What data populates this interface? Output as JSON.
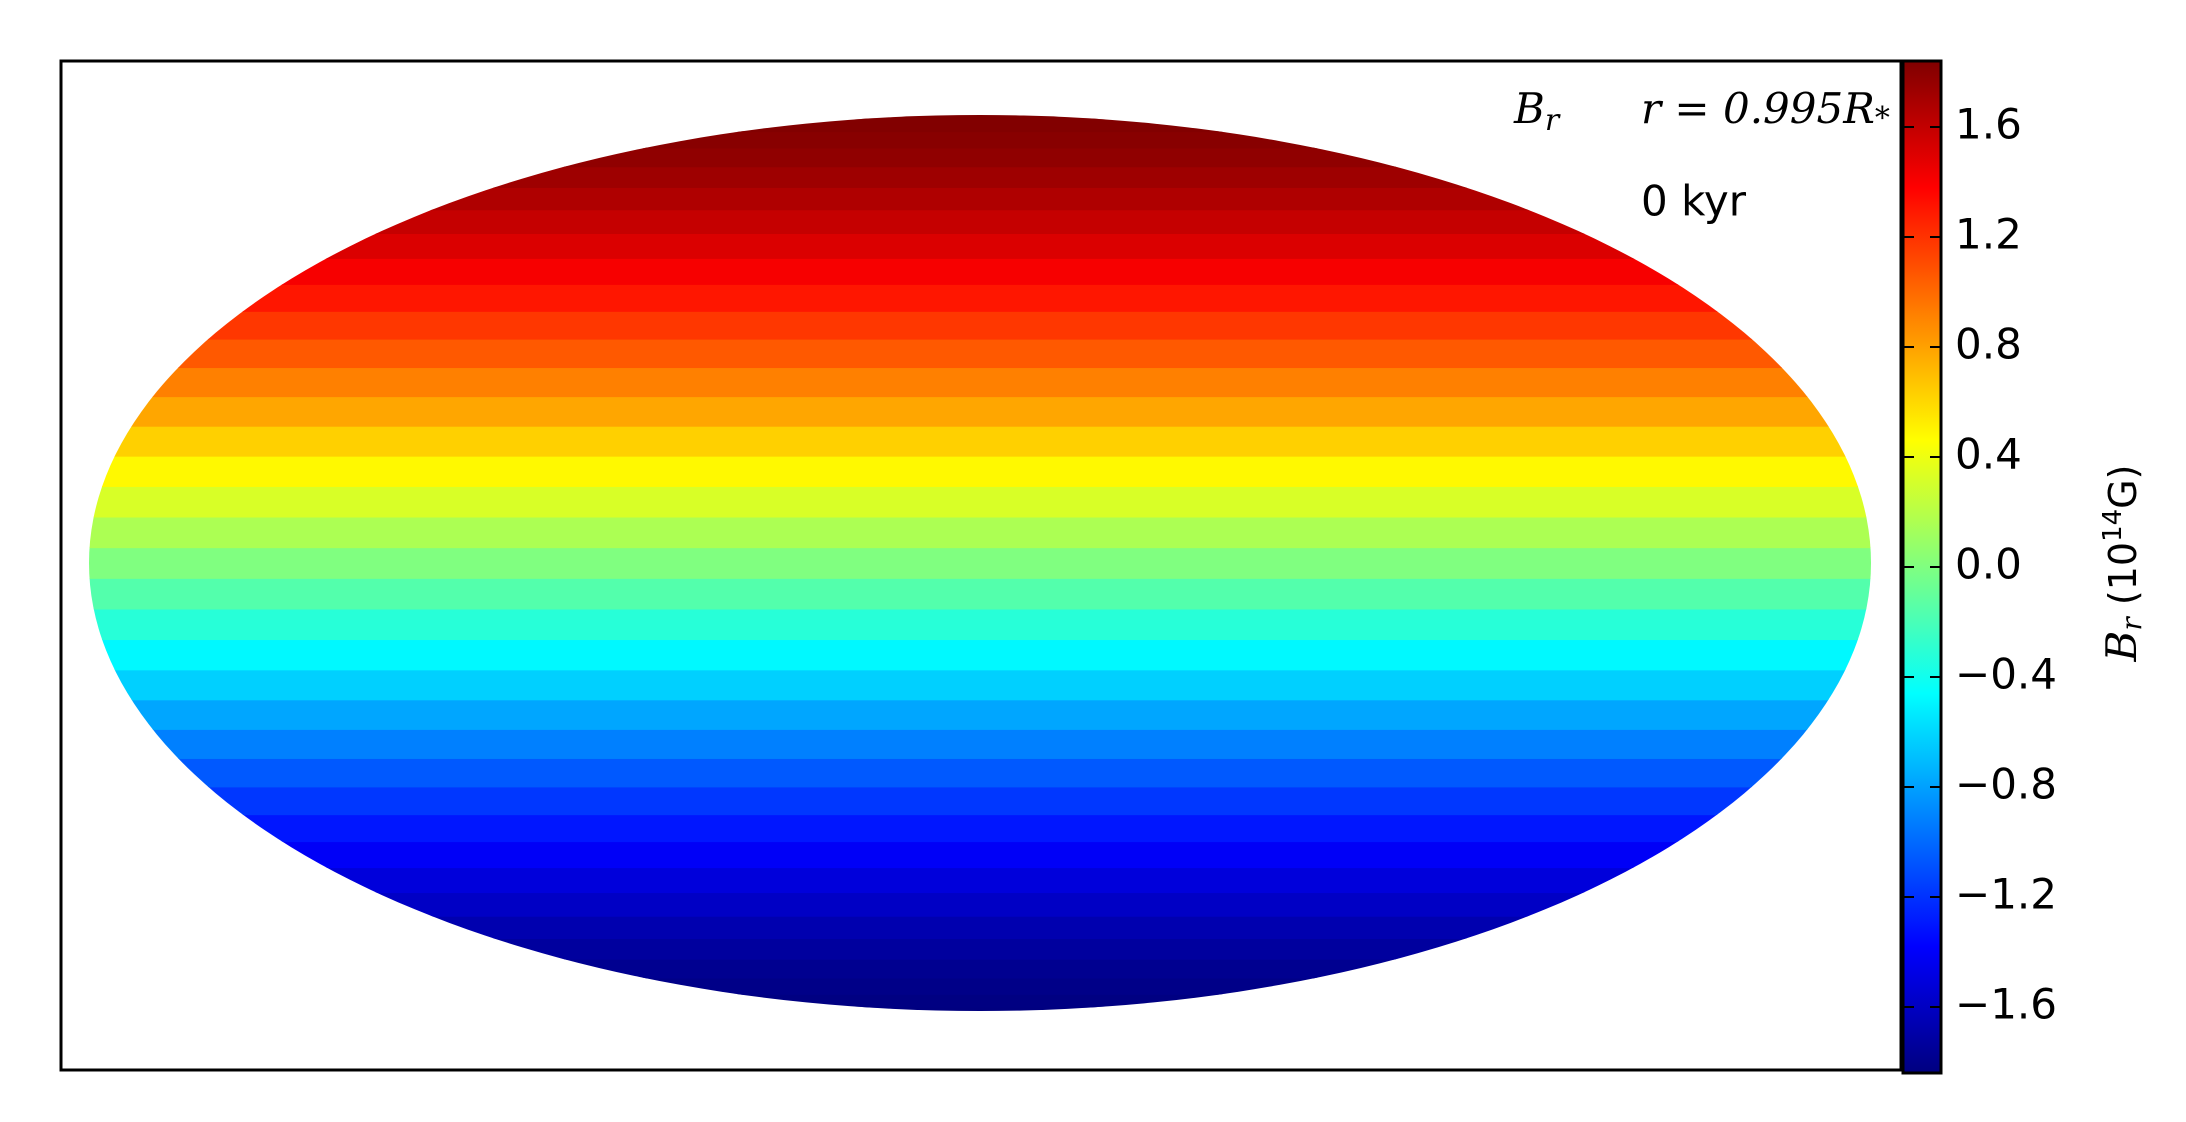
{
  "chart_data": {
    "type": "mollweide",
    "annotations": [
      {
        "text": "B",
        "sub": "r"
      },
      {
        "text": "r = 0.995R",
        "sub": "*"
      },
      {
        "text": "0 kyr"
      }
    ],
    "colorbar_label": {
      "text": "B",
      "sub": "r",
      "unit_pre": " (10",
      "unit_exp": "14",
      "unit_post": "G)"
    },
    "colormap": "jet",
    "latitudes": [
      -90,
      -85,
      -80,
      -75,
      -70,
      -65,
      -60,
      -55,
      -50,
      -45,
      -40,
      -35,
      -30,
      -25,
      -20,
      -15,
      -10,
      -5,
      0,
      5,
      10,
      15,
      20,
      25,
      30,
      35,
      40,
      45,
      50,
      55,
      60,
      65,
      70,
      75,
      80,
      85,
      90
    ],
    "values": [
      -1.84,
      -1.83,
      -1.81,
      -1.78,
      -1.73,
      -1.67,
      -1.59,
      -1.51,
      -1.41,
      -1.3,
      -1.18,
      -1.06,
      -0.92,
      -0.78,
      -0.63,
      -0.48,
      -0.32,
      -0.16,
      0,
      0.16,
      0.32,
      0.48,
      0.63,
      0.78,
      0.92,
      1.06,
      1.18,
      1.3,
      1.41,
      1.51,
      1.59,
      1.67,
      1.73,
      1.78,
      1.81,
      1.83,
      1.84
    ],
    "clim": [
      -1.84,
      1.84
    ],
    "cticks": [
      {
        "value": -1.6,
        "label": "−1.6"
      },
      {
        "value": -1.2,
        "label": "−1.2"
      },
      {
        "value": -0.8,
        "label": "−0.8"
      },
      {
        "value": -0.4,
        "label": "−0.4"
      },
      {
        "value": 0,
        "label": "0.0"
      },
      0.4,
      0.8,
      1.2,
      1.6
    ]
  }
}
